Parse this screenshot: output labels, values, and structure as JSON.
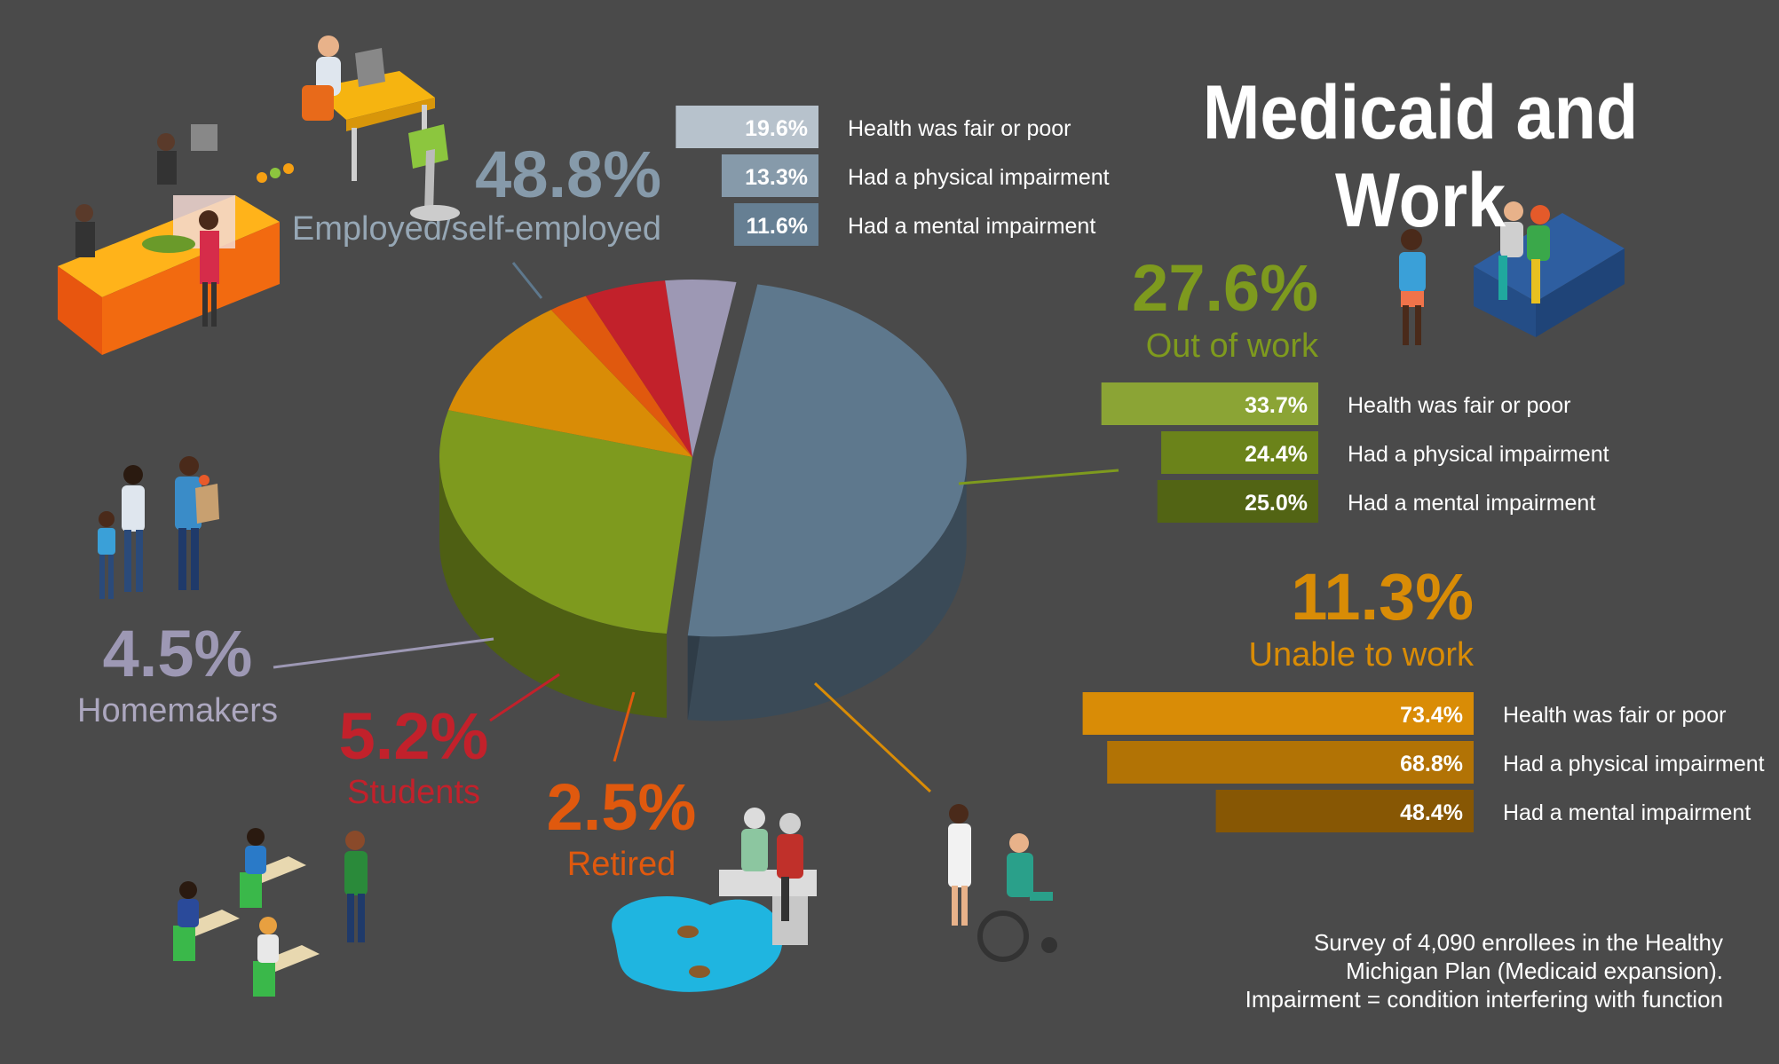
{
  "title": "Medicaid and Work",
  "note": [
    "Survey of 4,090 enrollees in the Healthy",
    "Michigan Plan (Medicaid expansion).",
    "Impairment = condition interfering with function"
  ],
  "colors": {
    "background": "#4a4a4a",
    "employed": "#5e788d",
    "out_of_work": "#7e9a1e",
    "unable": "#d98c06",
    "retired": "#e0590e",
    "students": "#c2212b",
    "homemakers": "#9d98b4"
  },
  "illustration_icons": [
    "office-worker-icon",
    "cafe-counter-icon",
    "family-shopping-icon",
    "couple-on-sofa-icon",
    "nurse-wheelchair-icon",
    "retired-couple-pond-icon",
    "students-desks-icon"
  ],
  "chart_data": {
    "type": "pie",
    "title": "Medicaid and Work",
    "labels": [
      "Employed/self-employed",
      "Out of work",
      "Unable to work",
      "Retired",
      "Students",
      "Homemakers"
    ],
    "values": [
      48.8,
      27.6,
      11.3,
      2.5,
      5.2,
      4.5
    ],
    "value_labels": [
      "48.8%",
      "27.6%",
      "11.3%",
      "2.5%",
      "5.2%",
      "4.5%"
    ],
    "detail_labels": [
      "Health was fair or poor",
      "Had a physical impairment",
      "Had a mental impairment"
    ],
    "details": {
      "Employed/self-employed": [
        19.6,
        13.3,
        11.6
      ],
      "Out of work": [
        33.7,
        24.4,
        25.0
      ],
      "Unable to work": [
        73.4,
        68.8,
        48.4
      ]
    },
    "detail_value_labels": {
      "Employed/self-employed": [
        "19.6%",
        "13.3%",
        "11.6%"
      ],
      "Out of work": [
        "33.7%",
        "24.4%",
        "25.0%"
      ],
      "Unable to work": [
        "73.4%",
        "68.8%",
        "48.4%"
      ]
    }
  }
}
